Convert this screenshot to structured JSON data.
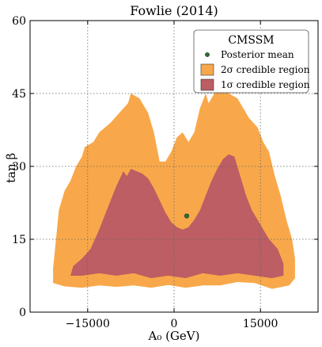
{
  "chart_data": {
    "type": "area",
    "title": "Fowlie (2014)",
    "xlabel": "A₀ (GeV)",
    "ylabel": "tan β",
    "xlim": [
      -25000,
      25000
    ],
    "ylim": [
      0,
      60
    ],
    "xticks": [
      -15000,
      0,
      15000
    ],
    "xtick_labels": [
      "−15000",
      "0",
      "15000"
    ],
    "yticks": [
      0,
      15,
      30,
      45,
      60
    ],
    "ytick_labels": [
      "0",
      "15",
      "30",
      "45",
      "60"
    ],
    "grid": true,
    "legend": {
      "title": "CMSSM",
      "placement": "top-right",
      "entries": [
        {
          "label": "Posterior mean",
          "kind": "point",
          "color": "#2e6b3c"
        },
        {
          "label": "2σ credible region",
          "kind": "patch",
          "color": "#f8a84a"
        },
        {
          "label": "1σ credible region",
          "kind": "patch",
          "color": "#bc5e63"
        }
      ]
    },
    "series": [
      {
        "name": "2σ credible region",
        "color": "#f8a84a",
        "polygon": [
          [
            -21000,
            6
          ],
          [
            -21000,
            9
          ],
          [
            -20500,
            15
          ],
          [
            -20000,
            21
          ],
          [
            -19000,
            25
          ],
          [
            -18000,
            27
          ],
          [
            -17000,
            30
          ],
          [
            -16000,
            32
          ],
          [
            -15500,
            34
          ],
          [
            -14000,
            35
          ],
          [
            -13000,
            37
          ],
          [
            -11000,
            39
          ],
          [
            -9500,
            41
          ],
          [
            -8000,
            43
          ],
          [
            -7500,
            45
          ],
          [
            -6000,
            44
          ],
          [
            -4500,
            41
          ],
          [
            -3500,
            37
          ],
          [
            -2500,
            31
          ],
          [
            -1500,
            31
          ],
          [
            -500,
            33
          ],
          [
            500,
            36
          ],
          [
            1500,
            37
          ],
          [
            2500,
            35
          ],
          [
            3500,
            37
          ],
          [
            4500,
            42
          ],
          [
            5500,
            45
          ],
          [
            6000,
            43
          ],
          [
            7500,
            46
          ],
          [
            8000,
            47.5
          ],
          [
            9500,
            45
          ],
          [
            11000,
            44
          ],
          [
            12000,
            42
          ],
          [
            13000,
            40
          ],
          [
            14500,
            38
          ],
          [
            15500,
            35
          ],
          [
            16500,
            33
          ],
          [
            17500,
            28
          ],
          [
            18500,
            24
          ],
          [
            19500,
            19
          ],
          [
            20500,
            15
          ],
          [
            21000,
            11
          ],
          [
            21000,
            7
          ],
          [
            20000,
            5.5
          ],
          [
            17000,
            4.8
          ],
          [
            14000,
            6
          ],
          [
            11000,
            6.2
          ],
          [
            8000,
            5.5
          ],
          [
            5000,
            5.5
          ],
          [
            2000,
            5
          ],
          [
            -1000,
            5.6
          ],
          [
            -4000,
            5
          ],
          [
            -7000,
            5.5
          ],
          [
            -10000,
            5.2
          ],
          [
            -13000,
            5.5
          ],
          [
            -16000,
            5
          ],
          [
            -19000,
            5.3
          ]
        ]
      },
      {
        "name": "1σ credible region",
        "color": "#bc5e63",
        "polygon": [
          [
            -18000,
            7.5
          ],
          [
            -17500,
            9.5
          ],
          [
            -16000,
            11
          ],
          [
            -14500,
            13
          ],
          [
            -13000,
            17
          ],
          [
            -12000,
            20
          ],
          [
            -11000,
            23
          ],
          [
            -10000,
            26
          ],
          [
            -8800,
            29
          ],
          [
            -8200,
            28
          ],
          [
            -7500,
            29.5
          ],
          [
            -6500,
            29
          ],
          [
            -5500,
            28.5
          ],
          [
            -4500,
            27.5
          ],
          [
            -3500,
            25.5
          ],
          [
            -2500,
            23
          ],
          [
            -1500,
            20.5
          ],
          [
            -500,
            18.5
          ],
          [
            500,
            17.5
          ],
          [
            1500,
            17
          ],
          [
            2500,
            17.5
          ],
          [
            3500,
            19
          ],
          [
            4500,
            21
          ],
          [
            5500,
            24
          ],
          [
            6500,
            27
          ],
          [
            7500,
            29.5
          ],
          [
            8500,
            31.5
          ],
          [
            9500,
            32.5
          ],
          [
            10500,
            32
          ],
          [
            11500,
            28
          ],
          [
            12500,
            24
          ],
          [
            13500,
            21
          ],
          [
            14500,
            19
          ],
          [
            15500,
            17
          ],
          [
            16500,
            15
          ],
          [
            18000,
            13
          ],
          [
            19000,
            10
          ],
          [
            19000,
            7.5
          ],
          [
            17000,
            7
          ],
          [
            14000,
            7.5
          ],
          [
            11000,
            8
          ],
          [
            8000,
            7.5
          ],
          [
            5000,
            8
          ],
          [
            2000,
            7
          ],
          [
            -1000,
            7.5
          ],
          [
            -4000,
            7
          ],
          [
            -7000,
            8
          ],
          [
            -10000,
            7.5
          ],
          [
            -13000,
            8
          ],
          [
            -16000,
            7.5
          ]
        ]
      },
      {
        "name": "Posterior mean",
        "color": "#2e6b3c",
        "points": [
          [
            2200,
            19.8
          ]
        ]
      }
    ]
  }
}
